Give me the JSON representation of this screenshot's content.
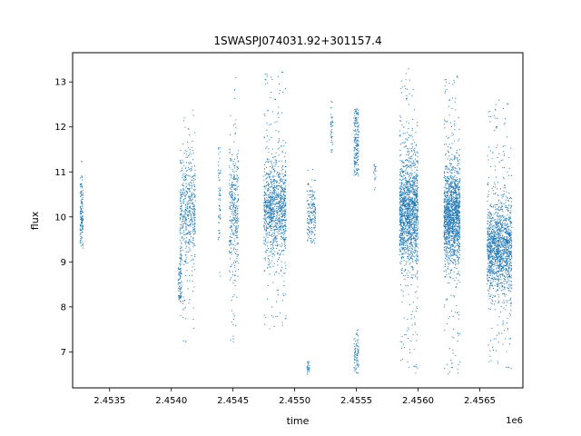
{
  "chart_data": {
    "type": "scatter",
    "title": "1SWASPJ074031.92+301157.4",
    "xlabel": "time",
    "ylabel": "flux",
    "x_offset_label": "1e6",
    "x_scale_factor": 1000000,
    "xlim": [
      2453200,
      2456850
    ],
    "ylim": [
      6.2,
      13.65
    ],
    "xticks": [
      2453500,
      2454000,
      2454500,
      2455000,
      2455500,
      2456000,
      2456500
    ],
    "xtick_labels": [
      "2.4535",
      "2.4540",
      "2.4545",
      "2.4550",
      "2.4555",
      "2.4560",
      "2.4565"
    ],
    "yticks": [
      7,
      8,
      9,
      10,
      11,
      12,
      13
    ],
    "ytick_labels": [
      "7",
      "8",
      "9",
      "10",
      "11",
      "12",
      "13"
    ],
    "grid": false,
    "marker_color": "#1f77b4",
    "clusters": [
      {
        "x_min": 2453260,
        "x_max": 2453285,
        "center": 10.05,
        "spread": 0.45,
        "y_min": 9.3,
        "y_max": 11.3,
        "count": 140
      },
      {
        "x_min": 2454055,
        "x_max": 2454085,
        "center": 8.5,
        "spread": 0.3,
        "y_min": 8.1,
        "y_max": 9.2,
        "count": 90
      },
      {
        "x_min": 2454070,
        "x_max": 2454195,
        "center": 10.15,
        "spread": 0.6,
        "y_min": 7.2,
        "y_max": 12.4,
        "count": 520
      },
      {
        "x_min": 2454380,
        "x_max": 2454400,
        "center": 10.1,
        "spread": 0.7,
        "y_min": 8.6,
        "y_max": 11.6,
        "count": 60
      },
      {
        "x_min": 2454470,
        "x_max": 2454545,
        "center": 10.1,
        "spread": 0.7,
        "y_min": 7.0,
        "y_max": 13.1,
        "count": 360
      },
      {
        "x_min": 2454750,
        "x_max": 2454930,
        "center": 10.2,
        "spread": 0.55,
        "y_min": 7.5,
        "y_max": 13.3,
        "count": 1100
      },
      {
        "x_min": 2455100,
        "x_max": 2455170,
        "center": 10.05,
        "spread": 0.35,
        "y_min": 9.4,
        "y_max": 11.2,
        "count": 180
      },
      {
        "x_min": 2455100,
        "x_max": 2455120,
        "center": 6.65,
        "spread": 0.08,
        "y_min": 6.5,
        "y_max": 6.8,
        "count": 25
      },
      {
        "x_min": 2455290,
        "x_max": 2455310,
        "center": 11.9,
        "spread": 0.35,
        "y_min": 11.4,
        "y_max": 12.6,
        "count": 40
      },
      {
        "x_min": 2455480,
        "x_max": 2455520,
        "center": 11.7,
        "spread": 0.45,
        "y_min": 10.9,
        "y_max": 12.4,
        "count": 180
      },
      {
        "x_min": 2455480,
        "x_max": 2455520,
        "center": 6.9,
        "spread": 0.25,
        "y_min": 6.5,
        "y_max": 7.5,
        "count": 80
      },
      {
        "x_min": 2455640,
        "x_max": 2455660,
        "center": 10.9,
        "spread": 0.25,
        "y_min": 10.6,
        "y_max": 11.2,
        "count": 20
      },
      {
        "x_min": 2455850,
        "x_max": 2456000,
        "center": 10.1,
        "spread": 0.6,
        "y_min": 6.5,
        "y_max": 13.3,
        "count": 1500
      },
      {
        "x_min": 2456210,
        "x_max": 2456340,
        "center": 10.05,
        "spread": 0.55,
        "y_min": 6.5,
        "y_max": 13.2,
        "count": 1500
      },
      {
        "x_min": 2456560,
        "x_max": 2456760,
        "center": 9.3,
        "spread": 0.5,
        "y_min": 6.5,
        "y_max": 12.6,
        "count": 1500
      }
    ]
  }
}
